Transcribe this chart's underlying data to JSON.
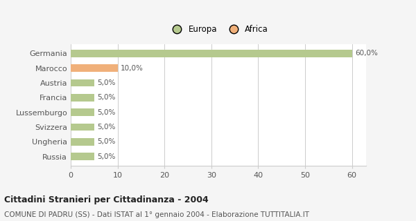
{
  "categories": [
    "Germania",
    "Marocco",
    "Austria",
    "Francia",
    "Lussemburgo",
    "Svizzera",
    "Ungheria",
    "Russia"
  ],
  "values": [
    60.0,
    10.0,
    5.0,
    5.0,
    5.0,
    5.0,
    5.0,
    5.0
  ],
  "colors": [
    "#b5c98e",
    "#f0b07a",
    "#b5c98e",
    "#b5c98e",
    "#b5c98e",
    "#b5c98e",
    "#b5c98e",
    "#b5c98e"
  ],
  "labels": [
    "60,0%",
    "10,0%",
    "5,0%",
    "5,0%",
    "5,0%",
    "5,0%",
    "5,0%",
    "5,0%"
  ],
  "legend_labels": [
    "Europa",
    "Africa"
  ],
  "legend_colors": [
    "#b5c98e",
    "#f0b07a"
  ],
  "title": "Cittadini Stranieri per Cittadinanza - 2004",
  "subtitle": "COMUNE DI PADRU (SS) - Dati ISTAT al 1° gennaio 2004 - Elaborazione TUTTITALIA.IT",
  "xlim": [
    0,
    63
  ],
  "xticks": [
    0,
    10,
    20,
    30,
    40,
    50,
    60
  ],
  "background_color": "#f5f5f5",
  "plot_background": "#ffffff",
  "grid_color": "#cccccc"
}
